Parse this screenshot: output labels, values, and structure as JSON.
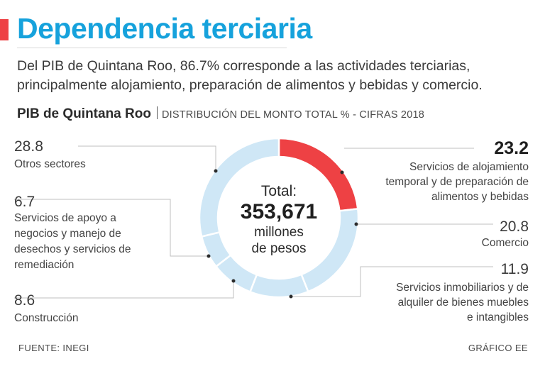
{
  "title": "Dependencia terciaria",
  "subtitle": [
    "Del PIB de Quintana Roo, 86.7% corresponde a las actividades terciarias,",
    "principalmente alojamiento, preparación de alimentos y bebidas y comercio."
  ],
  "chart_header": {
    "name": "PIB de Quintana Roo",
    "description": "DISTRIBUCIÓN DEL MONTO TOTAL % - CIFRAS 2018"
  },
  "center": {
    "label": "Total:",
    "value": "353,671",
    "unit_lines": [
      "millones",
      "de pesos"
    ]
  },
  "footer": {
    "source": "FUENTE: INEGI",
    "credit": "GRÁFICO EE"
  },
  "colors": {
    "title": "#16a2dc",
    "accent": "#ee4144",
    "highlight": "#ee4144",
    "slice": "#cfe7f6",
    "leader": "#bfbfbf"
  },
  "chart_data": {
    "type": "pie",
    "subtype": "donut",
    "unit": "%",
    "slices": [
      {
        "value": 23.2,
        "value_label": "23.2",
        "label_lines": [
          "Servicios de alojamiento",
          "temporal y de preparación de",
          "alimentos y bebidas"
        ],
        "highlight": true
      },
      {
        "value": 20.8,
        "value_label": "20.8",
        "label_lines": [
          "Comercio"
        ]
      },
      {
        "value": 11.9,
        "value_label": "11.9",
        "label_lines": [
          "Servicios inmobiliarios y de",
          "alquiler de bienes muebles",
          "e intangibles"
        ]
      },
      {
        "value": 8.6,
        "value_label": "8.6",
        "label_lines": [
          "Construcción"
        ]
      },
      {
        "value": 6.7,
        "value_label": "6.7",
        "label_lines": [
          "Servicios de apoyo a",
          "negocios y manejo de",
          "desechos y servicios de",
          "remediación"
        ]
      },
      {
        "value": 28.8,
        "value_label": "28.8",
        "label_lines": [
          "Otros sectores"
        ]
      }
    ]
  }
}
